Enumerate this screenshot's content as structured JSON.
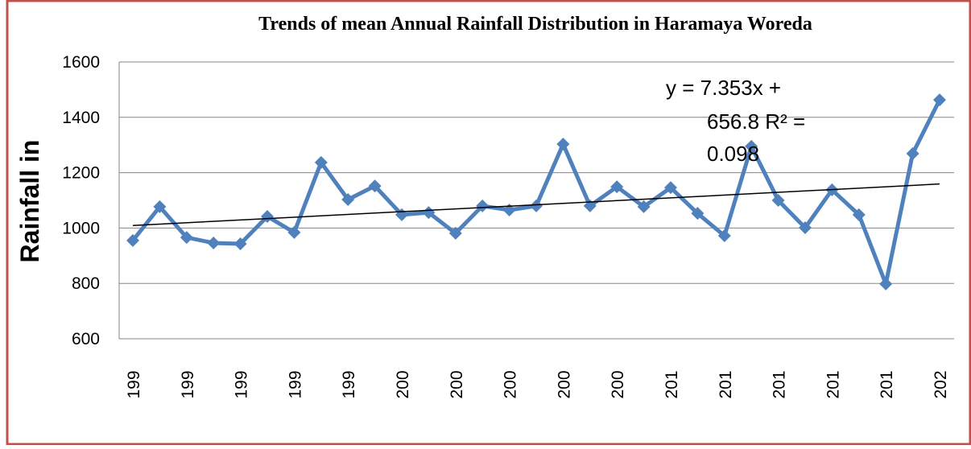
{
  "chart_data": {
    "type": "line",
    "title": "Trends of mean Annual Rainfall Distribution  in Haramaya Woreda",
    "y_label": "Rainfall in",
    "annotation": [
      "y = 7.353x +",
      "656.8 R² =",
      "0.098"
    ],
    "categories": [
      "199",
      null,
      "199",
      null,
      "199",
      null,
      "199",
      null,
      "199",
      null,
      "200",
      null,
      "200",
      null,
      "200",
      null,
      "200",
      null,
      "200",
      null,
      "201",
      null,
      "201",
      null,
      "201",
      null,
      "201",
      null,
      "201",
      null,
      "202"
    ],
    "series": [
      {
        "name": "Rainfall",
        "color": "#4f81bd",
        "values": [
          955,
          1077,
          966,
          946,
          943,
          1042,
          984,
          1237,
          1103,
          1152,
          1048,
          1056,
          981,
          1080,
          1065,
          1080,
          1303,
          1080,
          1149,
          1077,
          1146,
          1053,
          972,
          1295,
          1100,
          1001,
          1138,
          1048,
          798,
          1269,
          1463
        ]
      }
    ],
    "trendline": true,
    "ylim": [
      600,
      1600
    ],
    "yticks": [
      600,
      800,
      1000,
      1200,
      1400,
      1600
    ],
    "grid": true
  }
}
